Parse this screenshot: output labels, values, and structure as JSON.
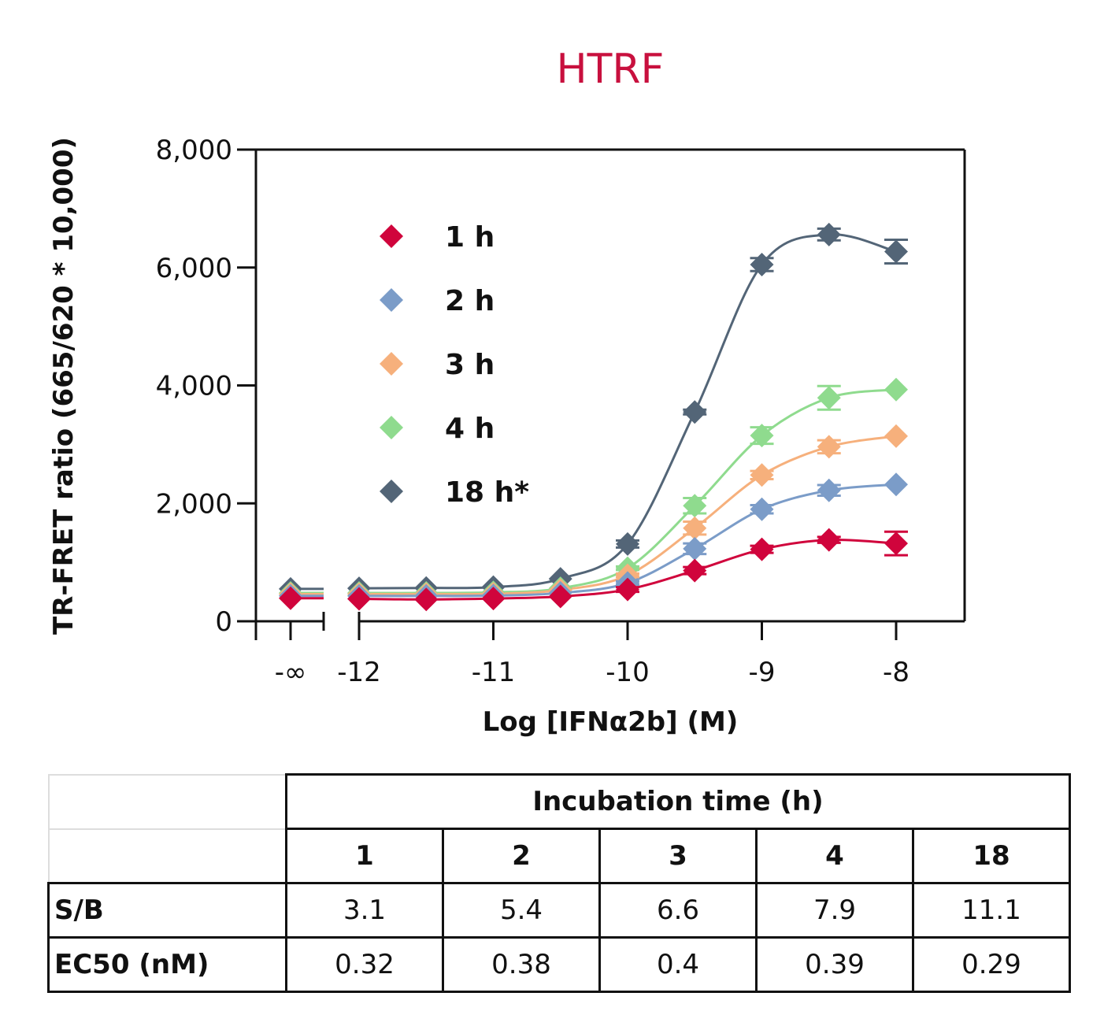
{
  "chart_data": {
    "type": "scatter",
    "title": "HTRF",
    "xlabel": "Log [IFNα2b] (M)",
    "ylabel": "TR-FRET ratio (665/620 * 10,000)",
    "ylim": [
      0,
      8000
    ],
    "xlim": [
      -12.25,
      -7.5
    ],
    "y_ticks": [
      0,
      2000,
      4000,
      6000,
      8000
    ],
    "y_tick_labels": [
      "0",
      "2,000",
      "4,000",
      "6,000",
      "8,000"
    ],
    "x_ticks": [
      -12,
      -11,
      -10,
      -9,
      -8
    ],
    "x_tick_labels": [
      "-12",
      "-11",
      "-10",
      "-9",
      "-8"
    ],
    "x_break_label": "-∞",
    "grid": false,
    "legend_position": "upper-left inside",
    "x": [
      -12,
      -11.5,
      -11,
      -10.5,
      -10,
      -9.5,
      -9,
      -8.5,
      -8
    ],
    "series": [
      {
        "name": "1 h",
        "color": "#d0043c",
        "neg_inf": 390,
        "values": [
          380,
          370,
          385,
          420,
          540,
          860,
          1220,
          1380,
          1320
        ],
        "errors": [
          0,
          0,
          0,
          0,
          40,
          60,
          60,
          50,
          200
        ]
      },
      {
        "name": "2 h",
        "color": "#7b9cc8",
        "neg_inf": 430,
        "values": [
          430,
          430,
          435,
          480,
          650,
          1230,
          1900,
          2220,
          2320
        ],
        "errors": [
          0,
          0,
          0,
          0,
          30,
          90,
          70,
          90,
          0
        ]
      },
      {
        "name": "3 h",
        "color": "#f6b07c",
        "neg_inf": 460,
        "values": [
          460,
          460,
          465,
          530,
          780,
          1580,
          2480,
          2960,
          3140
        ],
        "errors": [
          0,
          0,
          0,
          0,
          30,
          110,
          70,
          110,
          0
        ]
      },
      {
        "name": "4 h",
        "color": "#8fdb8e",
        "neg_inf": 480,
        "values": [
          480,
          480,
          490,
          560,
          900,
          1960,
          3150,
          3790,
          3930
        ],
        "errors": [
          0,
          0,
          0,
          0,
          30,
          130,
          140,
          200,
          0
        ]
      },
      {
        "name": "18 h*",
        "color": "#536577",
        "neg_inf": 550,
        "values": [
          560,
          565,
          580,
          720,
          1310,
          3550,
          6050,
          6560,
          6270
        ],
        "errors": [
          0,
          0,
          0,
          0,
          60,
          40,
          110,
          100,
          200
        ]
      }
    ],
    "table": {
      "group_header": "Incubation time (h)",
      "columns": [
        "1",
        "2",
        "3",
        "4",
        "18"
      ],
      "rows": [
        {
          "label": "S/B",
          "values": [
            "3.1",
            "5.4",
            "6.6",
            "7.9",
            "11.1"
          ]
        },
        {
          "label": "EC50 (nM)",
          "values": [
            "0.32",
            "0.38",
            "0.4",
            "0.39",
            "0.29"
          ]
        }
      ]
    }
  }
}
